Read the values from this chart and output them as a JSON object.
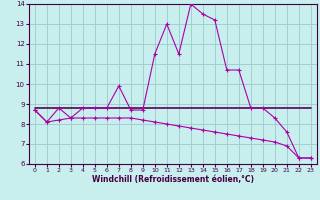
{
  "xlabel": "Windchill (Refroidissement éolien,°C)",
  "x": [
    0,
    1,
    2,
    3,
    4,
    5,
    6,
    7,
    8,
    9,
    10,
    11,
    12,
    13,
    14,
    15,
    16,
    17,
    18,
    19,
    20,
    21,
    22,
    23
  ],
  "line1": [
    8.7,
    8.1,
    8.8,
    8.3,
    8.8,
    8.8,
    8.8,
    9.9,
    8.7,
    8.7,
    11.5,
    13.0,
    11.5,
    14.0,
    13.5,
    13.2,
    10.7,
    10.7,
    8.8,
    8.8,
    8.3,
    7.6,
    6.3,
    6.3
  ],
  "line2": [
    8.8,
    8.8,
    8.8,
    8.8,
    8.8,
    8.8,
    8.8,
    8.8,
    8.8,
    8.8,
    8.8,
    8.8,
    8.8,
    8.8,
    8.8,
    8.8,
    8.8,
    8.8,
    8.8,
    8.8,
    8.8,
    8.8,
    8.8,
    8.8
  ],
  "line3": [
    8.7,
    8.1,
    8.2,
    8.3,
    8.3,
    8.3,
    8.3,
    8.3,
    8.3,
    8.2,
    8.1,
    8.0,
    7.9,
    7.8,
    7.7,
    7.6,
    7.5,
    7.4,
    7.3,
    7.2,
    7.1,
    6.9,
    6.3,
    6.3
  ],
  "line1_color": "#aa00aa",
  "line2_color": "#550055",
  "line3_color": "#aa00aa",
  "bg_color": "#c8eeee",
  "grid_color": "#99cccc",
  "axis_color": "#440044",
  "ylim_min": 6,
  "ylim_max": 14,
  "ytick_min": 6,
  "ytick_max": 14,
  "xticks": [
    0,
    1,
    2,
    3,
    4,
    5,
    6,
    7,
    8,
    9,
    10,
    11,
    12,
    13,
    14,
    15,
    16,
    17,
    18,
    19,
    20,
    21,
    22,
    23
  ],
  "yticks": [
    6,
    7,
    8,
    9,
    10,
    11,
    12,
    13,
    14
  ]
}
